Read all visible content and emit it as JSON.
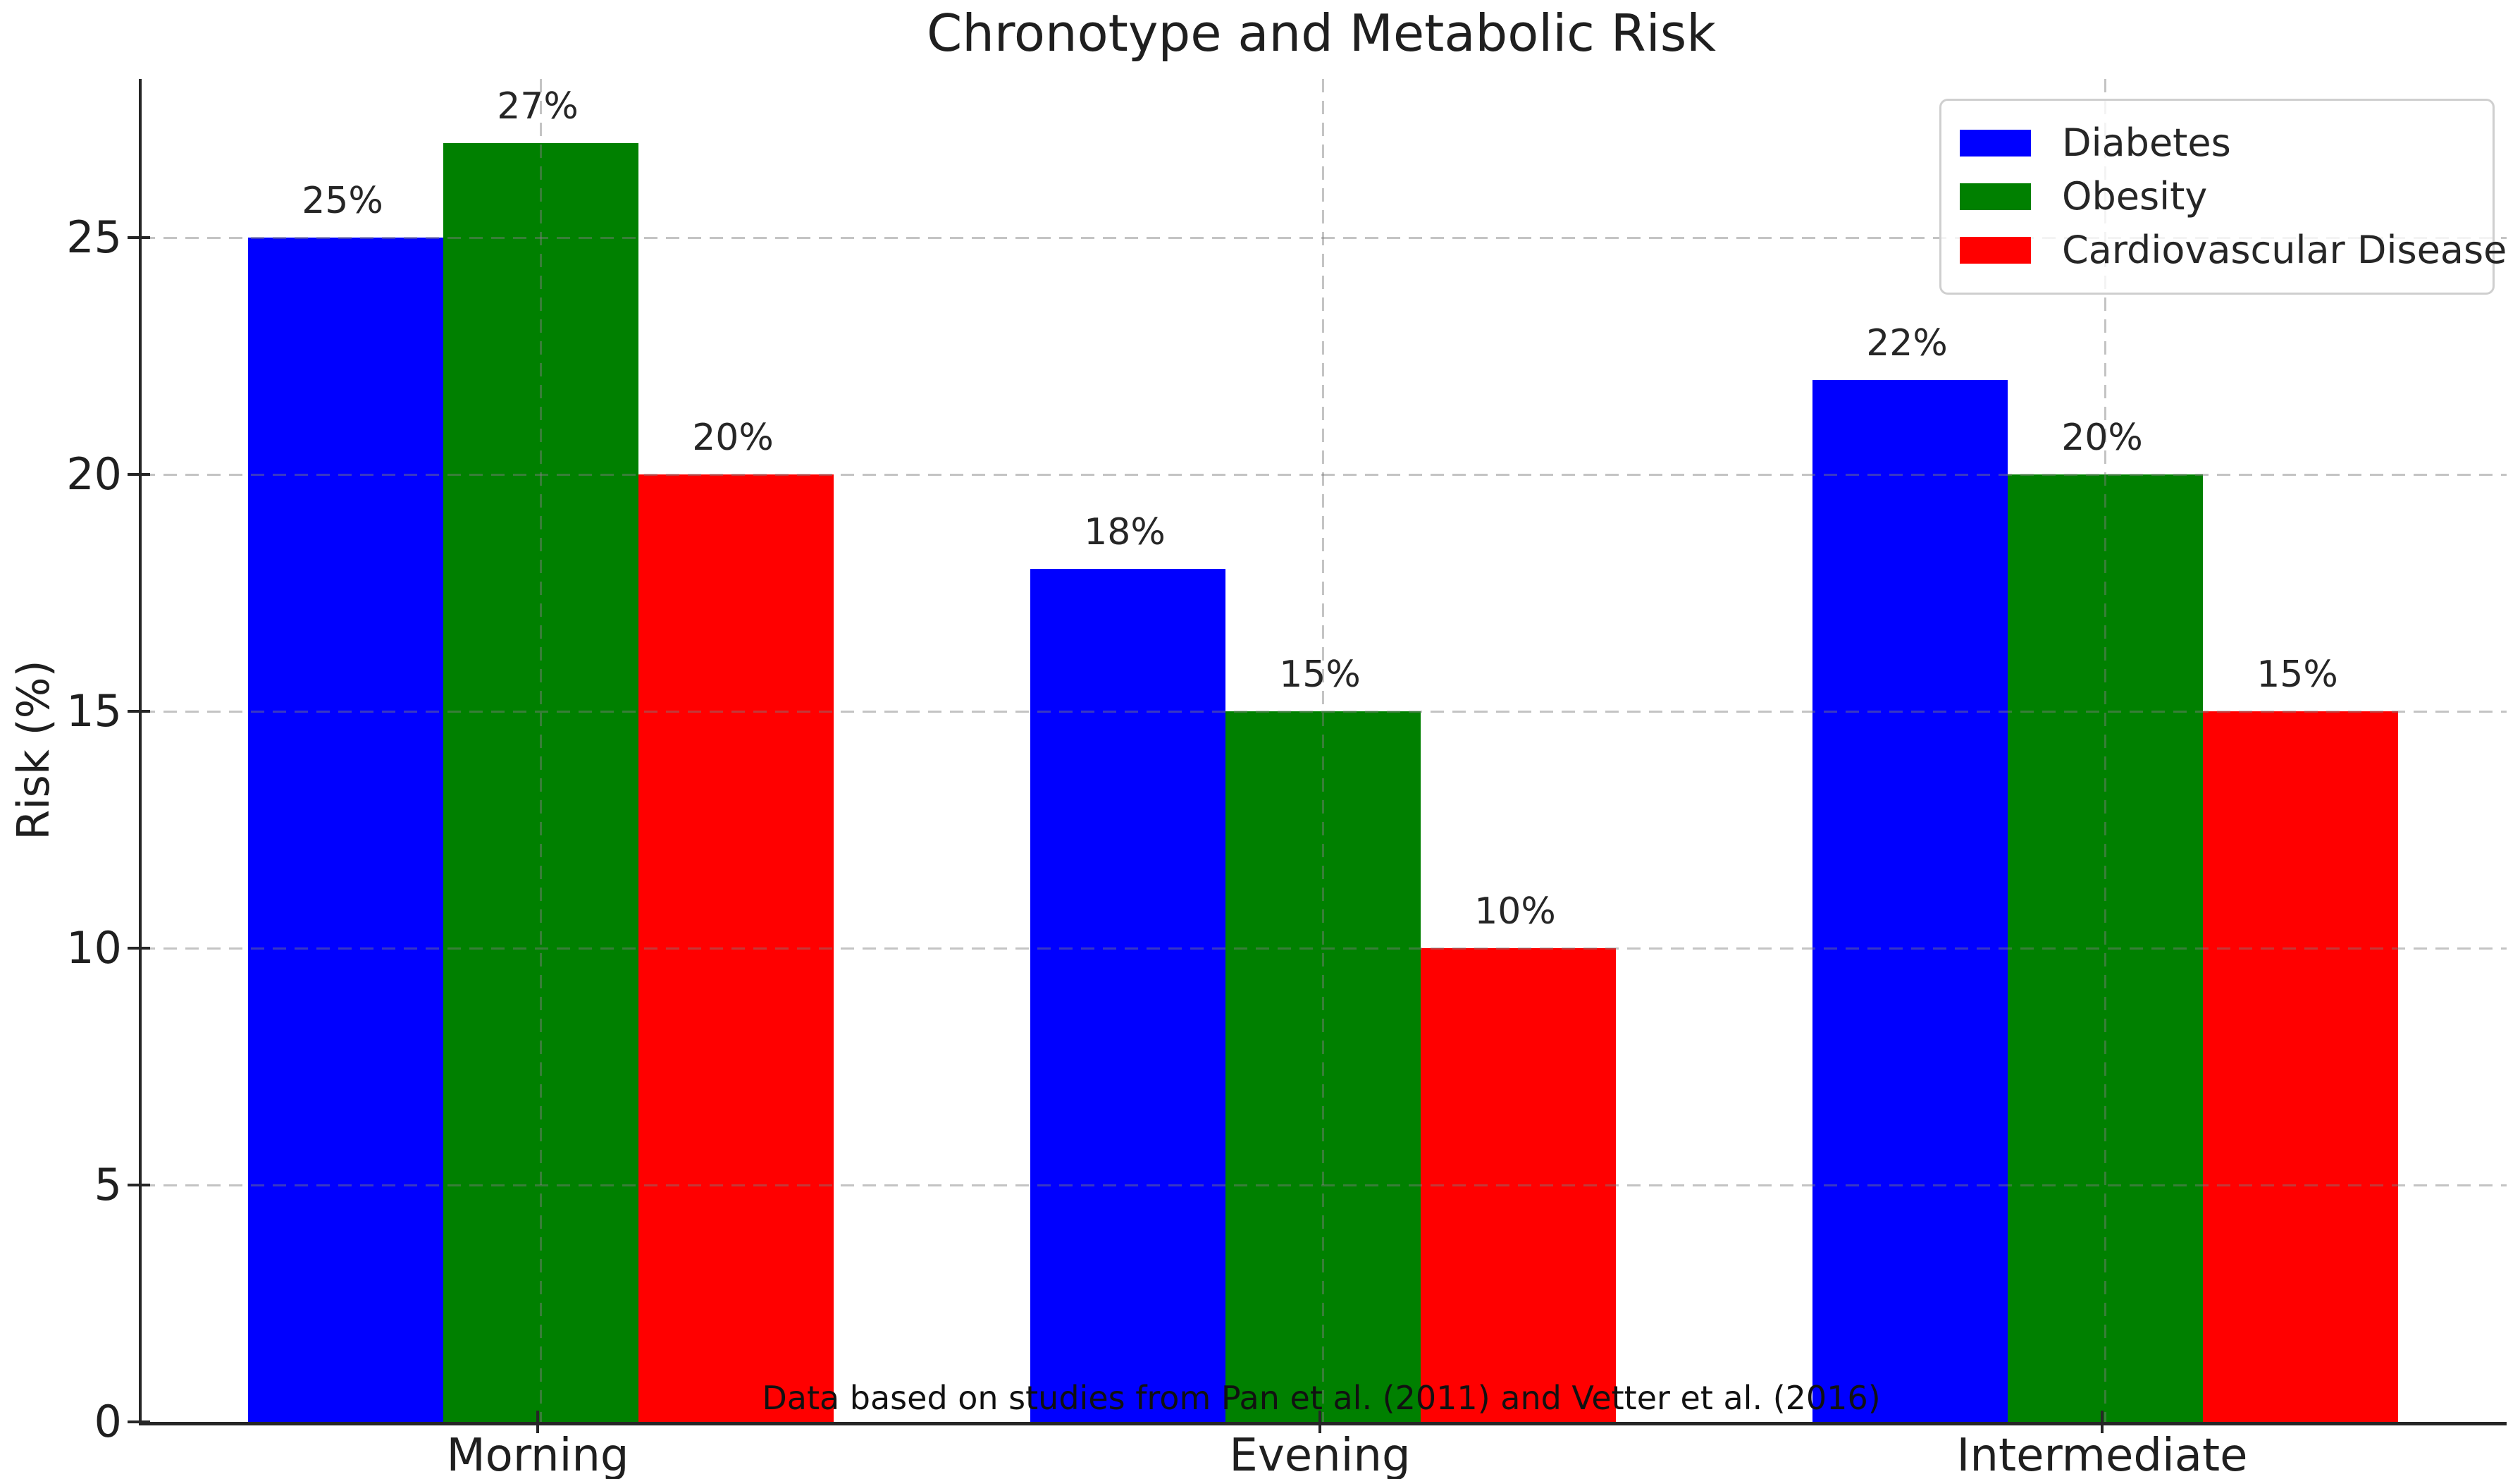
{
  "chart_data": {
    "type": "bar",
    "title": "Chronotype and Metabolic Risk",
    "xlabel": "",
    "ylabel": "Risk (%)",
    "categories": [
      "Morning",
      "Evening",
      "Intermediate"
    ],
    "series": [
      {
        "name": "Diabetes",
        "color": "#0000ff",
        "values": [
          25,
          18,
          22
        ],
        "labels": [
          "25%",
          "18%",
          "22%"
        ]
      },
      {
        "name": "Obesity",
        "color": "#008000",
        "values": [
          27,
          15,
          20
        ],
        "labels": [
          "27%",
          "15%",
          "20%"
        ]
      },
      {
        "name": "Cardiovascular Disease",
        "color": "#ff0000",
        "values": [
          20,
          10,
          15
        ],
        "labels": [
          "20%",
          "10%",
          "15%"
        ]
      }
    ],
    "yticks": [
      0,
      5,
      10,
      15,
      20,
      25
    ],
    "ylim": [
      0,
      28.35
    ],
    "grid": true,
    "grid_style": "dashed",
    "legend_position": "upper right",
    "annotation": "Data based on studies from Pan et al. (2011) and Vetter et al. (2016)",
    "axis_color": "#262626",
    "background_color": "#ffffff"
  }
}
